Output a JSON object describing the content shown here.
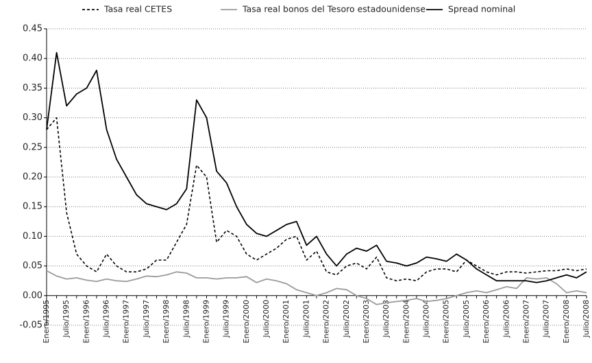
{
  "chart_data": {
    "type": "line",
    "categories": [
      "Enero/1995",
      null,
      "Julio/1995",
      null,
      "Enero/1996",
      null,
      "Julio/1996",
      null,
      "Enero/1997",
      null,
      "Julio/1997",
      null,
      "Enero/1998",
      null,
      "Julio/1998",
      null,
      "Enero/1999",
      null,
      "Julio/1999",
      null,
      "Enero/2000",
      null,
      "Julio/2000",
      null,
      "Enero/2001",
      null,
      "Julio/2001",
      null,
      "Enero/2002",
      null,
      "Julio/2002",
      null,
      "Enero/2003",
      null,
      "Julio/2003",
      null,
      "Enero/2004",
      null,
      "Julio/2004",
      null,
      "Enero/2005",
      null,
      "Julio/2005",
      null,
      "Enero/2006",
      null,
      "Julio/2006",
      null,
      "Enero/2007",
      null,
      "Julio/2007",
      null,
      "Enero/2008",
      null,
      "Julio/2008"
    ],
    "series": [
      {
        "name": "Tasa real CETES",
        "color": "#000000",
        "dash": "dashed",
        "values": [
          0.28,
          0.3,
          0.14,
          0.07,
          0.05,
          0.04,
          0.07,
          0.05,
          0.04,
          0.04,
          0.045,
          0.06,
          0.06,
          0.09,
          0.12,
          0.22,
          0.2,
          0.09,
          0.11,
          0.1,
          0.07,
          0.06,
          0.07,
          0.08,
          0.095,
          0.1,
          0.06,
          0.075,
          0.04,
          0.035,
          0.05,
          0.055,
          0.045,
          0.065,
          0.03,
          0.025,
          0.028,
          0.025,
          0.04,
          0.045,
          0.045,
          0.04,
          0.06,
          0.05,
          0.04,
          0.035,
          0.04,
          0.04,
          0.038,
          0.04,
          0.042,
          0.042,
          0.045,
          0.042,
          0.045
        ]
      },
      {
        "name": "Tasa real bonos del Tesoro estadounidense",
        "color": "#9a9a9a",
        "dash": "solid",
        "values": [
          0.042,
          0.033,
          0.028,
          0.03,
          0.026,
          0.024,
          0.028,
          0.025,
          0.024,
          0.028,
          0.033,
          0.032,
          0.035,
          0.04,
          0.038,
          0.03,
          0.03,
          0.028,
          0.03,
          0.03,
          0.032,
          0.022,
          0.028,
          0.025,
          0.02,
          0.01,
          0.005,
          0.0,
          0.005,
          0.012,
          0.01,
          0.0,
          -0.005,
          -0.015,
          -0.012,
          -0.01,
          -0.008,
          -0.005,
          -0.01,
          -0.008,
          -0.005,
          0.0,
          0.005,
          0.008,
          0.005,
          0.01,
          0.015,
          0.012,
          0.03,
          0.028,
          0.03,
          0.02,
          0.005,
          0.008,
          0.005
        ]
      },
      {
        "name": "Spread nominal",
        "color": "#000000",
        "dash": "solid",
        "values": [
          0.28,
          0.41,
          0.32,
          0.34,
          0.35,
          0.38,
          0.28,
          0.23,
          0.2,
          0.17,
          0.155,
          0.15,
          0.145,
          0.155,
          0.18,
          0.33,
          0.3,
          0.21,
          0.19,
          0.15,
          0.12,
          0.105,
          0.1,
          0.11,
          0.12,
          0.125,
          0.085,
          0.1,
          0.07,
          0.05,
          0.07,
          0.08,
          0.075,
          0.085,
          0.058,
          0.055,
          0.05,
          0.055,
          0.065,
          0.062,
          0.058,
          0.07,
          0.06,
          0.045,
          0.035,
          0.025,
          0.025,
          0.025,
          0.025,
          0.022,
          0.025,
          0.03,
          0.035,
          0.03,
          0.04
        ]
      }
    ],
    "ylim": [
      -0.05,
      0.45
    ],
    "yticks": [
      -0.05,
      {
        "value": 0,
        "label": "0.00"
      },
      0.05,
      {
        "value": 0.1,
        "label": "0.10"
      },
      0.15,
      {
        "value": 0.2,
        "label": "0.20"
      },
      0.25,
      {
        "value": 0.3,
        "label": "0.30"
      },
      0.35,
      {
        "value": 0.4,
        "label": "0.40"
      },
      0.45
    ],
    "grid": true,
    "legend": "top"
  }
}
